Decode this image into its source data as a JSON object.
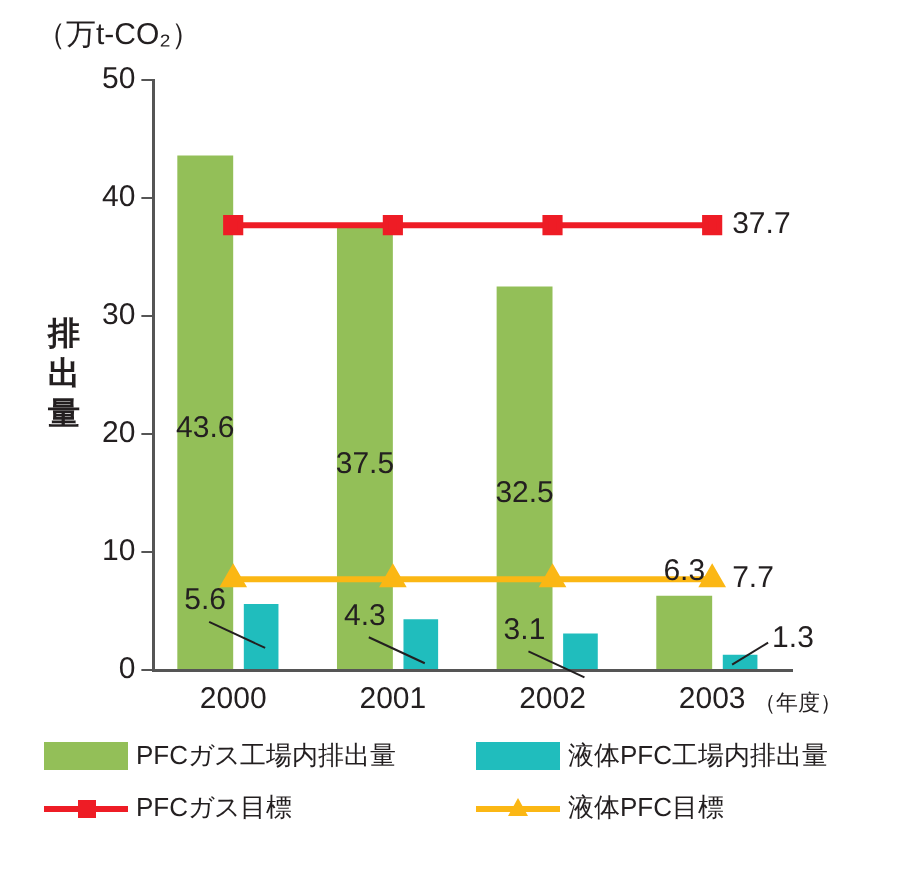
{
  "chart_data": {
    "type": "bar",
    "ylabel": "排出量",
    "xlabel": "（年度）",
    "annotations": [
      "（万t-CO₂）"
    ],
    "categories": [
      "2000",
      "2001",
      "2002",
      "2003"
    ],
    "series": [
      {
        "name": "PFCガス工場内排出量",
        "color": "#93bf58",
        "values": [
          43.6,
          37.5,
          32.5,
          6.3
        ],
        "value_labels": [
          "43.6",
          "37.5",
          "32.5",
          "6.3"
        ]
      },
      {
        "name": "液体PFC工場内排出量",
        "color": "#20bdbd",
        "values": [
          5.6,
          4.3,
          3.1,
          1.3
        ],
        "value_labels": [
          "5.6",
          "4.3",
          "3.1",
          "1.3"
        ]
      },
      {
        "name": "PFCガス目標",
        "type": "line",
        "color": "#ee1c25",
        "marker": "square",
        "values": [
          37.7,
          37.7,
          37.7,
          37.7
        ],
        "value_labels": [
          null,
          null,
          null,
          "37.7"
        ]
      },
      {
        "name": "液体PFC目標",
        "type": "line",
        "color": "#fbb714",
        "marker": "triangle",
        "values": [
          7.7,
          7.7,
          7.7,
          7.7
        ],
        "value_labels": [
          null,
          null,
          null,
          "7.7"
        ]
      }
    ],
    "ylim": [
      0,
      50
    ],
    "yticks": [
      0,
      10,
      20,
      30,
      40,
      50
    ],
    "grid": false,
    "legend": "bottom"
  }
}
